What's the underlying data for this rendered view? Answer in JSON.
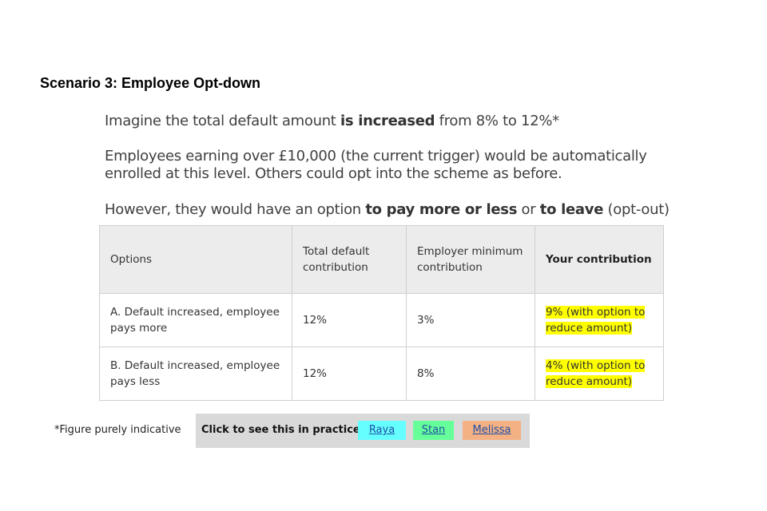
{
  "title": "Scenario 3: Employee Opt-down",
  "intro": {
    "line1_pre": "Imagine the total default amount ",
    "line1_bold": "is increased",
    "line1_post": " from 8% to 12%*",
    "line2": "Employees earning over £10,000 (the current trigger) would be automatically enrolled at this level. Others could opt into the scheme as before.",
    "line3_pre": "However, they would have an option ",
    "line3_bold1": "to pay more or less",
    "line3_mid": " or ",
    "line3_bold2": "to leave",
    "line3_post": " (opt-out)"
  },
  "table": {
    "headers": [
      "Options",
      "Total default contribution",
      "Employer minimum contribution",
      "Your contribution"
    ],
    "rows": [
      [
        "A. Default increased, employee pays more",
        "12%",
        "3%",
        "9% (with option to reduce amount)"
      ],
      [
        "B. Default increased, employee pays less",
        "12%",
        "8%",
        "4% (with option to reduce amount)"
      ]
    ],
    "highlight_color": "#ffff00"
  },
  "footnote": "*Figure purely indicative",
  "practice": {
    "label": "Click to see this in practice:",
    "links": [
      {
        "label": "Raya",
        "color": "#66ffff"
      },
      {
        "label": "Stan",
        "color": "#66ff99"
      },
      {
        "label": "Melissa",
        "color": "#f4b183"
      }
    ]
  }
}
